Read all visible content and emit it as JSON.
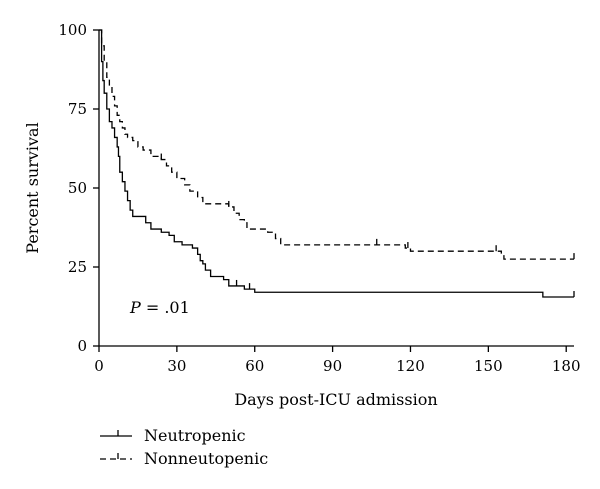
{
  "chart_data": {
    "type": "line",
    "subtype": "kaplan-meier step curve",
    "title": "",
    "xlabel": "Days post-ICU admission",
    "ylabel": "Percent survival",
    "xlim": [
      0,
      183
    ],
    "ylim": [
      0,
      100
    ],
    "x_ticks": [
      0,
      30,
      60,
      90,
      120,
      150,
      180
    ],
    "y_ticks": [
      0,
      25,
      50,
      75,
      100
    ],
    "grid": false,
    "legend_position": "bottom-left, below plot",
    "annotation": {
      "italic": "P",
      "text": " = .01"
    },
    "series": [
      {
        "name": "Neutropenic",
        "line_style": "solid",
        "color": "#000000",
        "points": [
          [
            0,
            100
          ],
          [
            1,
            90
          ],
          [
            1.5,
            84
          ],
          [
            2,
            80
          ],
          [
            3,
            75
          ],
          [
            4,
            71
          ],
          [
            5,
            69
          ],
          [
            6,
            66
          ],
          [
            7,
            63
          ],
          [
            7.5,
            60
          ],
          [
            8,
            55
          ],
          [
            9,
            52
          ],
          [
            10,
            49
          ],
          [
            11,
            46
          ],
          [
            12,
            43
          ],
          [
            13,
            41
          ],
          [
            18,
            39
          ],
          [
            20,
            37
          ],
          [
            24,
            36
          ],
          [
            27,
            35
          ],
          [
            29,
            33
          ],
          [
            32,
            32
          ],
          [
            36,
            31
          ],
          [
            38,
            29
          ],
          [
            39,
            27
          ],
          [
            40,
            26
          ],
          [
            41,
            24
          ],
          [
            43,
            22
          ],
          [
            48,
            21
          ],
          [
            50,
            19
          ],
          [
            56,
            18
          ],
          [
            60,
            17
          ],
          [
            171,
            15.5
          ],
          [
            183,
            15.5
          ]
        ],
        "censor_marks_x": [
          53,
          58,
          183
        ]
      },
      {
        "name": "Nonneutopenic",
        "line_style": "dashed",
        "color": "#000000",
        "points": [
          [
            0,
            100
          ],
          [
            1,
            95
          ],
          [
            2,
            90
          ],
          [
            3,
            85
          ],
          [
            4,
            82
          ],
          [
            5,
            79
          ],
          [
            6,
            76
          ],
          [
            7,
            73
          ],
          [
            8,
            71
          ],
          [
            9,
            69
          ],
          [
            10,
            67
          ],
          [
            11,
            66
          ],
          [
            13,
            65
          ],
          [
            15,
            63
          ],
          [
            17,
            62
          ],
          [
            20,
            60
          ],
          [
            24,
            59
          ],
          [
            26,
            57
          ],
          [
            28,
            55
          ],
          [
            30,
            53
          ],
          [
            33,
            51
          ],
          [
            35,
            49
          ],
          [
            38,
            47
          ],
          [
            40,
            45
          ],
          [
            50,
            44
          ],
          [
            52,
            42
          ],
          [
            54,
            40
          ],
          [
            56,
            39
          ],
          [
            57,
            37
          ],
          [
            65,
            36
          ],
          [
            68,
            34
          ],
          [
            70,
            32
          ],
          [
            118,
            31
          ],
          [
            120,
            30
          ],
          [
            155,
            29
          ],
          [
            156,
            27.5
          ],
          [
            183,
            27.5
          ]
        ],
        "censor_marks_x": [
          24,
          50,
          107,
          119,
          153,
          183
        ]
      }
    ]
  }
}
